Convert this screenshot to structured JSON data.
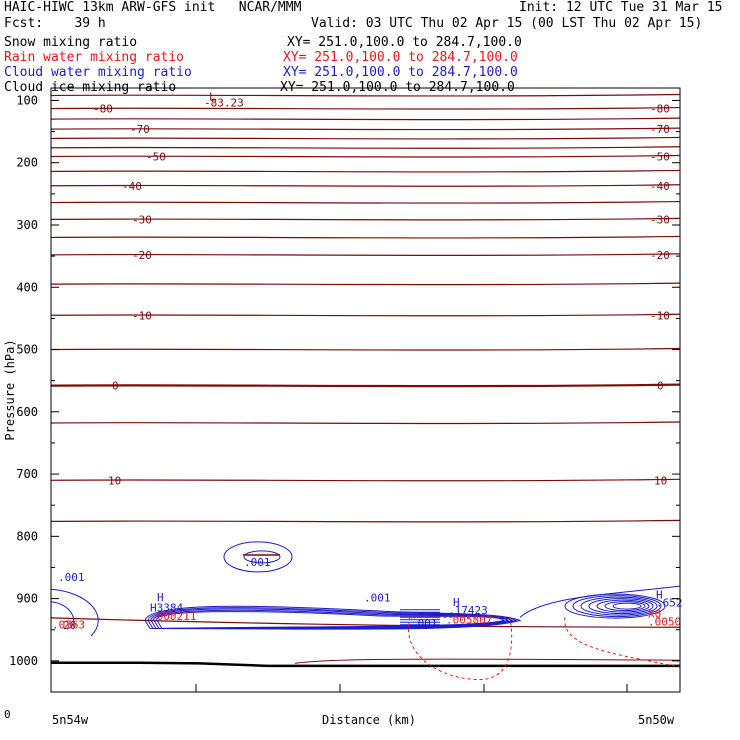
{
  "header": {
    "title": "HAIC-HIWC 13km ARW-GFS init   NCAR/MMM",
    "init": "Init: 12 UTC Tue 31 Mar 15",
    "fcst": "Fcst:    39 h",
    "valid": "Valid: 03 UTC Thu 02 Apr 15 (00 LST Thu 02 Apr 15)"
  },
  "fields": [
    {
      "name": "Snow mixing ratio",
      "xy": "XY= 251.0,100.0 to 284.7,100.0",
      "color": "#000000"
    },
    {
      "name": "Rain water mixing ratio",
      "xy": "XY= 251.0,100.0 to 284.7,100.0",
      "color": "#e8141c"
    },
    {
      "name": "Cloud water mixing ratio",
      "xy": "XY= 251.0,100.0 to 284.7,100.0",
      "color": "#1c1cc8"
    },
    {
      "name": "Cloud ice mixing ratio",
      "xy": "XY= 251.0,100.0 to 284.7,100.0",
      "color": "#000000"
    }
  ],
  "chart_data": {
    "type": "contour-cross-section",
    "xlabel": "Distance (km)",
    "ylabel": "Pressure (hPa)",
    "x_tick_first": "0",
    "x_left_label": "5n54w",
    "x_right_label": "5n50w",
    "ylim": [
      1050,
      80
    ],
    "ytick_labels": [
      "100",
      "200",
      "300",
      "400",
      "500",
      "600",
      "700",
      "800",
      "900",
      "1000"
    ],
    "ytick_values": [
      100,
      200,
      300,
      400,
      500,
      600,
      700,
      800,
      900,
      1000
    ],
    "temperature_color": "#7a0c0c",
    "temperature_contour_labels": [
      {
        "label": "-80",
        "p": 113
      },
      {
        "label": "-70",
        "p": 146
      },
      {
        "label": "-50",
        "p": 190
      },
      {
        "label": "-40",
        "p": 237
      },
      {
        "label": "-30",
        "p": 291
      },
      {
        "label": "-20",
        "p": 348
      },
      {
        "label": "-10",
        "p": 445
      },
      {
        "label": "0",
        "p": 558
      },
      {
        "label": "10",
        "p": 710
      },
      {
        "label": "20",
        "p": 942
      }
    ],
    "temperature_contour_pressures": [
      92,
      113,
      130,
      146,
      161,
      176,
      190,
      214,
      237,
      264,
      291,
      320,
      348,
      395,
      445,
      500,
      558,
      618,
      710,
      776
    ],
    "min_label": {
      "text": "L",
      "value": "-83.23"
    },
    "annotations": [
      {
        "text": ".001",
        "color": "#1c1cc8"
      },
      {
        "text": ".001",
        "color": "#1c1cc8"
      },
      {
        "text": "H",
        "color": "#1c1cc8"
      },
      {
        "text": "H3384",
        "color": "#1c1cc8"
      },
      {
        "text": ".000211",
        "color": "#e8141c"
      },
      {
        "text": ".001",
        "color": "#1c1cc8"
      },
      {
        "text": "H",
        "color": "#1c1cc8"
      },
      {
        "text": ".17423",
        "color": "#1c1cc8"
      },
      {
        "text": ".005807",
        "color": "#e8141c"
      },
      {
        "text": ".001",
        "color": "#1c1cc8"
      },
      {
        "text": "H",
        "color": "#1c1cc8"
      },
      {
        "text": ".652",
        "color": "#1c1cc8"
      },
      {
        "text": "X0",
        "color": "#e8141c"
      },
      {
        "text": ".0050",
        "color": "#e8141c"
      },
      {
        "text": ".0763",
        "color": "#e8141c"
      }
    ],
    "grid": false
  }
}
